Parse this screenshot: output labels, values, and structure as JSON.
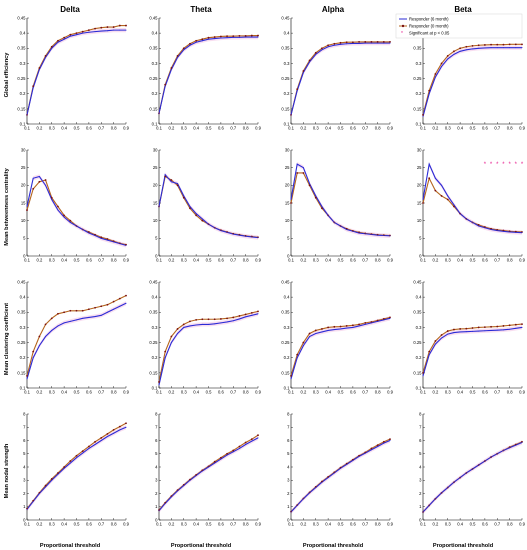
{
  "columns": [
    "Delta",
    "Theta",
    "Alpha",
    "Beta"
  ],
  "rows": [
    {
      "ylabel": "Global efficiency",
      "ylim": [
        0.1,
        0.45
      ],
      "yticks": [
        "0.1",
        "0.15",
        "0.2",
        "0.25",
        "0.3",
        "0.35",
        "0.4",
        "0.45"
      ]
    },
    {
      "ylabel": "Mean betweenness centrality",
      "ylim": [
        0,
        30
      ],
      "yticks": [
        "0",
        "5",
        "10",
        "15",
        "20",
        "25",
        "30"
      ]
    },
    {
      "ylabel": "Mean clustering coefficient",
      "ylim": [
        0.1,
        0.45
      ],
      "yticks": [
        "0.1",
        "0.15",
        "0.2",
        "0.25",
        "0.3",
        "0.35",
        "0.4",
        "0.45"
      ]
    },
    {
      "ylabel": "Mean nodal strength",
      "ylim": [
        0,
        8
      ],
      "yticks": [
        "0",
        "1",
        "2",
        "3",
        "4",
        "5",
        "6",
        "7",
        "8"
      ]
    }
  ],
  "xlabel": "Proportional threshold",
  "xticks": [
    "0.1",
    "0.2",
    "0.3",
    "0.4",
    "0.5",
    "0.6",
    "0.7",
    "0.8",
    "0.9"
  ],
  "legend": {
    "entries": [
      "Responder (6 month)",
      "Responder (0 month)",
      "Significant at p < 0.05"
    ],
    "placement": "top-right of Alpha global efficiency panel"
  },
  "colors": {
    "six_month": "#2b2bd6",
    "zero_month": "#b5651d",
    "zero_marker": "#7a1010",
    "significant": "#e6198c",
    "band": "#f3c8e6"
  },
  "chart_data": {
    "type": "line",
    "layout": "4x4 small multiples",
    "x": [
      0.1,
      0.15,
      0.2,
      0.25,
      0.3,
      0.35,
      0.4,
      0.45,
      0.5,
      0.55,
      0.6,
      0.65,
      0.7,
      0.75,
      0.8,
      0.85,
      0.9
    ],
    "xlim": [
      0.1,
      0.9
    ],
    "panels": [
      {
        "row": 0,
        "col": 0,
        "series": [
          {
            "name": "Responder (6 month)",
            "values": [
              0.13,
              0.22,
              0.28,
              0.32,
              0.35,
              0.37,
              0.38,
              0.39,
              0.395,
              0.4,
              0.403,
              0.405,
              0.407,
              0.408,
              0.41,
              0.41,
              0.41
            ]
          },
          {
            "name": "Responder (0 month)",
            "values": [
              0.13,
              0.225,
              0.285,
              0.325,
              0.355,
              0.375,
              0.385,
              0.395,
              0.4,
              0.405,
              0.41,
              0.415,
              0.418,
              0.42,
              0.42,
              0.425,
              0.425
            ]
          }
        ],
        "significant": []
      },
      {
        "row": 0,
        "col": 1,
        "series": [
          {
            "name": "Responder (6 month)",
            "values": [
              0.135,
              0.225,
              0.28,
              0.32,
              0.345,
              0.36,
              0.37,
              0.375,
              0.38,
              0.382,
              0.384,
              0.385,
              0.386,
              0.386,
              0.387,
              0.387,
              0.387
            ]
          },
          {
            "name": "Responder (0 month)",
            "values": [
              0.135,
              0.23,
              0.285,
              0.325,
              0.35,
              0.365,
              0.375,
              0.38,
              0.385,
              0.387,
              0.389,
              0.39,
              0.39,
              0.391,
              0.391,
              0.392,
              0.392
            ]
          }
        ],
        "significant": []
      },
      {
        "row": 0,
        "col": 2,
        "series": [
          {
            "name": "Responder (6 month)",
            "values": [
              0.13,
              0.21,
              0.27,
              0.305,
              0.33,
              0.345,
              0.355,
              0.36,
              0.363,
              0.365,
              0.366,
              0.366,
              0.367,
              0.367,
              0.367,
              0.367,
              0.367
            ]
          },
          {
            "name": "Responder (0 month)",
            "values": [
              0.13,
              0.215,
              0.275,
              0.31,
              0.335,
              0.35,
              0.36,
              0.365,
              0.368,
              0.37,
              0.37,
              0.371,
              0.371,
              0.371,
              0.371,
              0.371,
              0.371
            ]
          }
        ],
        "significant": []
      },
      {
        "row": 0,
        "col": 3,
        "series": [
          {
            "name": "Responder (6 month)",
            "values": [
              0.125,
              0.2,
              0.255,
              0.29,
              0.315,
              0.33,
              0.34,
              0.345,
              0.348,
              0.35,
              0.351,
              0.352,
              0.352,
              0.352,
              0.352,
              0.352,
              0.352
            ]
          },
          {
            "name": "Responder (0 month)",
            "values": [
              0.13,
              0.21,
              0.265,
              0.3,
              0.325,
              0.34,
              0.35,
              0.355,
              0.358,
              0.36,
              0.361,
              0.362,
              0.362,
              0.362,
              0.363,
              0.363,
              0.363
            ]
          }
        ],
        "significant": []
      },
      {
        "row": 1,
        "col": 0,
        "series": [
          {
            "name": "Responder (6 month)",
            "values": [
              14,
              22,
              22.5,
              20,
              16,
              13,
              11,
              9.5,
              8.5,
              7.5,
              6.5,
              5.8,
              5,
              4.5,
              4,
              3.5,
              3
            ]
          },
          {
            "name": "Responder (0 month)",
            "values": [
              13,
              19,
              21,
              21.5,
              16.5,
              14,
              11.5,
              10,
              8.5,
              7.5,
              6.8,
              6,
              5.3,
              4.8,
              4.2,
              3.6,
              3.2
            ]
          }
        ],
        "significant": []
      },
      {
        "row": 1,
        "col": 1,
        "series": [
          {
            "name": "Responder (6 month)",
            "values": [
              14,
              23,
              21,
              20.5,
              17,
              14,
              12,
              10.5,
              9,
              8,
              7.2,
              6.7,
              6.2,
              5.9,
              5.6,
              5.4,
              5.2
            ]
          },
          {
            "name": "Responder (0 month)",
            "values": [
              14,
              22.5,
              21.5,
              20,
              16.5,
              13.5,
              11.5,
              10,
              9,
              8,
              7.3,
              6.8,
              6.3,
              6,
              5.7,
              5.5,
              5.3
            ]
          }
        ],
        "significant": []
      },
      {
        "row": 1,
        "col": 2,
        "series": [
          {
            "name": "Responder (6 month)",
            "values": [
              16,
              26,
              25,
              20.5,
              17,
              14,
              11.5,
              9.5,
              8.5,
              7.5,
              7,
              6.5,
              6.3,
              6.1,
              5.9,
              5.8,
              5.7
            ]
          },
          {
            "name": "Responder (0 month)",
            "values": [
              15,
              23.5,
              23.5,
              20,
              16.5,
              13.5,
              11.5,
              9.5,
              8.5,
              7.7,
              7.1,
              6.7,
              6.4,
              6.2,
              6,
              5.9,
              5.8
            ]
          }
        ],
        "significant": []
      },
      {
        "row": 1,
        "col": 3,
        "series": [
          {
            "name": "Responder (6 month)",
            "values": [
              16,
              26,
              22,
              20,
              17,
              14.5,
              12,
              10.5,
              9.5,
              8.5,
              8,
              7.5,
              7.2,
              7,
              6.8,
              6.7,
              6.6
            ]
          },
          {
            "name": "Responder (0 month)",
            "values": [
              15,
              22,
              18.5,
              17,
              16,
              14,
              12,
              10.5,
              9.5,
              8.8,
              8.2,
              7.7,
              7.4,
              7.2,
              7,
              6.9,
              6.8
            ]
          }
        ],
        "significant": [
          0.6,
          0.65,
          0.7,
          0.75,
          0.8,
          0.85,
          0.9
        ]
      },
      {
        "row": 2,
        "col": 0,
        "series": [
          {
            "name": "Responder (6 month)",
            "values": [
              0.13,
              0.2,
              0.24,
              0.27,
              0.29,
              0.305,
              0.315,
              0.32,
              0.325,
              0.33,
              0.333,
              0.336,
              0.34,
              0.35,
              0.36,
              0.37,
              0.38
            ]
          },
          {
            "name": "Responder (0 month)",
            "values": [
              0.14,
              0.22,
              0.27,
              0.31,
              0.33,
              0.345,
              0.35,
              0.355,
              0.355,
              0.355,
              0.36,
              0.365,
              0.37,
              0.375,
              0.385,
              0.395,
              0.405
            ]
          }
        ],
        "significant": []
      },
      {
        "row": 2,
        "col": 1,
        "series": [
          {
            "name": "Responder (6 month)",
            "values": [
              0.11,
              0.2,
              0.25,
              0.28,
              0.3,
              0.305,
              0.308,
              0.31,
              0.31,
              0.312,
              0.315,
              0.318,
              0.322,
              0.328,
              0.335,
              0.34,
              0.345
            ]
          },
          {
            "name": "Responder (0 month)",
            "values": [
              0.12,
              0.22,
              0.27,
              0.295,
              0.31,
              0.32,
              0.325,
              0.327,
              0.327,
              0.327,
              0.328,
              0.33,
              0.333,
              0.338,
              0.343,
              0.348,
              0.353
            ]
          }
        ],
        "significant": []
      },
      {
        "row": 2,
        "col": 2,
        "series": [
          {
            "name": "Responder (6 month)",
            "values": [
              0.13,
              0.2,
              0.24,
              0.27,
              0.28,
              0.285,
              0.29,
              0.293,
              0.295,
              0.298,
              0.3,
              0.305,
              0.31,
              0.315,
              0.32,
              0.325,
              0.33
            ]
          },
          {
            "name": "Responder (0 month)",
            "values": [
              0.14,
              0.21,
              0.25,
              0.28,
              0.29,
              0.295,
              0.3,
              0.302,
              0.303,
              0.305,
              0.307,
              0.31,
              0.315,
              0.318,
              0.323,
              0.328,
              0.333
            ]
          }
        ],
        "significant": []
      },
      {
        "row": 2,
        "col": 3,
        "series": [
          {
            "name": "Responder (6 month)",
            "values": [
              0.14,
              0.21,
              0.245,
              0.265,
              0.278,
              0.283,
              0.285,
              0.286,
              0.287,
              0.288,
              0.289,
              0.29,
              0.291,
              0.292,
              0.294,
              0.297,
              0.3
            ]
          },
          {
            "name": "Responder (0 month)",
            "values": [
              0.15,
              0.22,
              0.255,
              0.275,
              0.288,
              0.293,
              0.295,
              0.296,
              0.298,
              0.3,
              0.301,
              0.302,
              0.303,
              0.305,
              0.307,
              0.309,
              0.311
            ]
          }
        ],
        "significant": []
      },
      {
        "row": 3,
        "col": 0,
        "series": [
          {
            "name": "Responder (6 month)",
            "values": [
              0.8,
              1.4,
              2.0,
              2.5,
              3.0,
              3.45,
              3.9,
              4.3,
              4.7,
              5.05,
              5.4,
              5.7,
              6.0,
              6.3,
              6.55,
              6.8,
              7.0
            ]
          },
          {
            "name": "Responder (0 month)",
            "values": [
              0.85,
              1.45,
              2.05,
              2.6,
              3.1,
              3.55,
              4.0,
              4.45,
              4.85,
              5.2,
              5.55,
              5.9,
              6.2,
              6.5,
              6.8,
              7.05,
              7.3
            ]
          }
        ],
        "significant": []
      },
      {
        "row": 3,
        "col": 1,
        "series": [
          {
            "name": "Responder (6 month)",
            "values": [
              0.7,
              1.25,
              1.75,
              2.2,
              2.6,
              3.0,
              3.35,
              3.7,
              4.0,
              4.3,
              4.6,
              4.9,
              5.15,
              5.4,
              5.7,
              5.95,
              6.2
            ]
          },
          {
            "name": "Responder (0 month)",
            "values": [
              0.75,
              1.3,
              1.8,
              2.25,
              2.65,
              3.05,
              3.4,
              3.75,
              4.05,
              4.4,
              4.7,
              5.0,
              5.25,
              5.55,
              5.85,
              6.1,
              6.4
            ]
          }
        ],
        "significant": []
      },
      {
        "row": 3,
        "col": 2,
        "series": [
          {
            "name": "Responder (6 month)",
            "values": [
              0.6,
              1.1,
              1.6,
              2.05,
              2.45,
              2.85,
              3.2,
              3.55,
              3.9,
              4.2,
              4.5,
              4.8,
              5.05,
              5.3,
              5.55,
              5.8,
              6.0
            ]
          },
          {
            "name": "Responder (0 month)",
            "values": [
              0.62,
              1.12,
              1.62,
              2.08,
              2.5,
              2.9,
              3.25,
              3.6,
              3.95,
              4.25,
              4.55,
              4.85,
              5.1,
              5.4,
              5.65,
              5.9,
              6.1
            ]
          }
        ],
        "significant": []
      },
      {
        "row": 3,
        "col": 3,
        "series": [
          {
            "name": "Responder (6 month)",
            "values": [
              0.6,
              1.1,
              1.6,
              2.05,
              2.45,
              2.85,
              3.2,
              3.55,
              3.85,
              4.15,
              4.45,
              4.75,
              5.0,
              5.25,
              5.45,
              5.65,
              5.85
            ]
          },
          {
            "name": "Responder (0 month)",
            "values": [
              0.6,
              1.1,
              1.6,
              2.05,
              2.45,
              2.85,
              3.2,
              3.55,
              3.85,
              4.15,
              4.45,
              4.75,
              5.0,
              5.25,
              5.5,
              5.7,
              5.9
            ]
          }
        ],
        "significant": []
      }
    ]
  }
}
